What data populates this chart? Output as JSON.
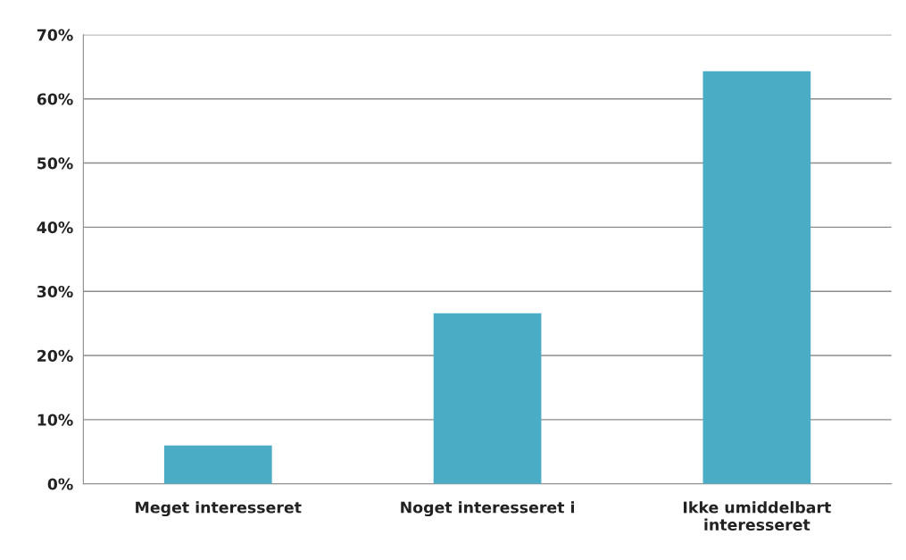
{
  "chart_data": {
    "type": "bar",
    "categories": [
      "Meget interesseret",
      "Noget interesseret i",
      "Ikke umiddelbart\ninteresseret"
    ],
    "values": [
      6.0,
      26.6,
      64.3
    ],
    "color": "#4bacc6",
    "ylim": [
      0,
      70
    ],
    "yticks": [
      {
        "value": 0,
        "label": "0%"
      },
      {
        "value": 10,
        "label": "10%"
      },
      {
        "value": 20,
        "label": "20%"
      },
      {
        "value": 30,
        "label": "30%"
      },
      {
        "value": 40,
        "label": "40%"
      },
      {
        "value": 50,
        "label": "50%"
      },
      {
        "value": 60,
        "label": "60%"
      },
      {
        "value": 70,
        "label": "70%"
      }
    ],
    "grid": "y",
    "legend": false
  }
}
